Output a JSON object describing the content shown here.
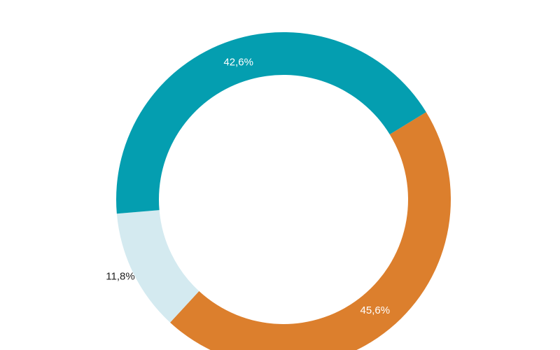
{
  "chart_data": {
    "type": "pie",
    "title": "",
    "donut": true,
    "categories": [
      "",
      "",
      ""
    ],
    "values": [
      45.6,
      11.8,
      42.6
    ],
    "labels": [
      "45,6%",
      "11,8%",
      "42,6%"
    ],
    "colors": [
      "#dc7f2d",
      "#d4eaf0",
      "#049eb0"
    ],
    "label_colors": [
      "#ffffff",
      "#222222",
      "#ffffff"
    ],
    "start_angle_deg": 58.5,
    "direction": "clockwise",
    "legend": "none"
  }
}
